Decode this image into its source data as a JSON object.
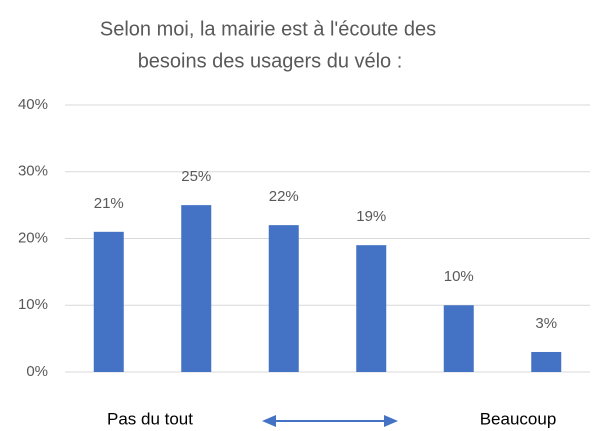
{
  "chart_data": {
    "type": "bar",
    "title": [
      "Selon moi, la mairie est à l'écoute des",
      "besoins des usagers du vélo :"
    ],
    "categories": [
      null,
      null,
      null,
      null,
      null,
      null
    ],
    "values": [
      21,
      25,
      22,
      19,
      10,
      3
    ],
    "value_labels": [
      "21%",
      "25%",
      "22%",
      "19%",
      "10%",
      "3%"
    ],
    "color": "#4472c4",
    "ylim": [
      0,
      40
    ],
    "yticks": [
      {
        "value": 0,
        "label": "0%"
      },
      {
        "value": 10,
        "label": "10%"
      },
      {
        "value": 20,
        "label": "20%"
      },
      {
        "value": 30,
        "label": "30%"
      },
      {
        "value": 40,
        "label": "40%"
      }
    ],
    "grid": true,
    "annotations": [
      "Pas du tout",
      "Beaucoup"
    ]
  }
}
